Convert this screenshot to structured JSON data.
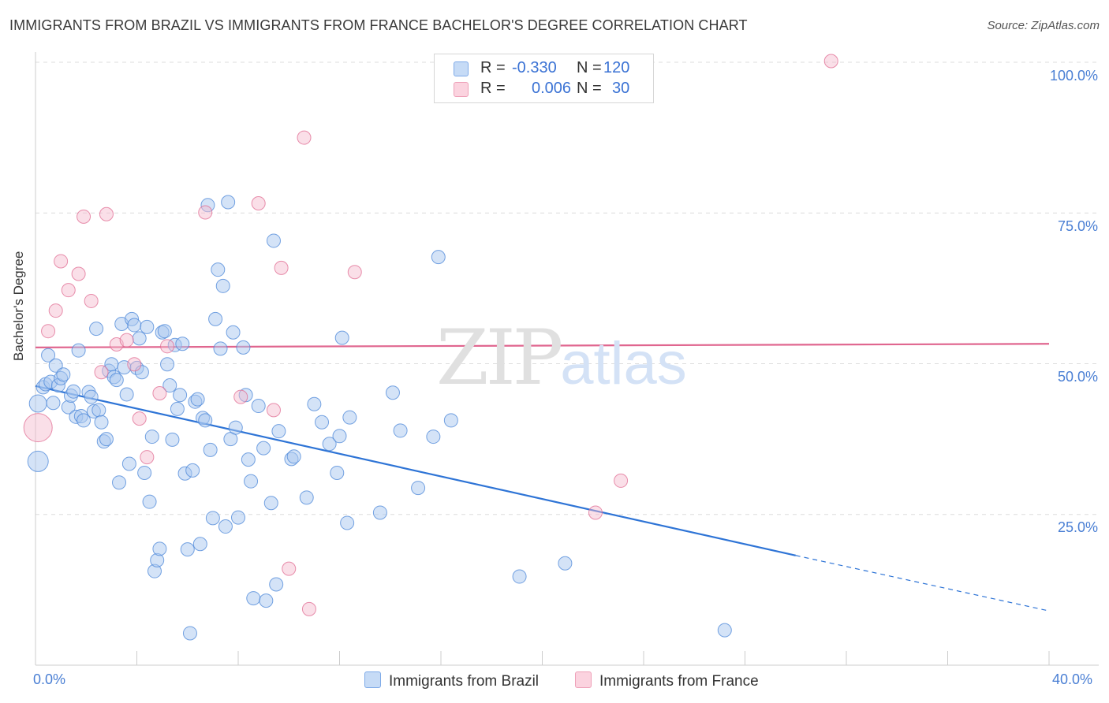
{
  "title": "IMMIGRANTS FROM BRAZIL VS IMMIGRANTS FROM FRANCE BACHELOR'S DEGREE CORRELATION CHART",
  "source": "Source: ZipAtlas.com",
  "watermark": {
    "part1": "ZIP",
    "part2": "atlas"
  },
  "legend": {
    "brazil": {
      "r_label": "R =",
      "r_value": "-0.330",
      "n_label": "N =",
      "n_value": "120",
      "color": "#a9c8f0"
    },
    "france": {
      "r_label": "R =",
      "r_value": "0.006",
      "n_label": "N =",
      "n_value": "30",
      "color": "#f5b8cb"
    }
  },
  "bottom_legend": {
    "brazil": "Immigrants from Brazil",
    "france": "Immigrants from France"
  },
  "axes": {
    "y_label": "Bachelor's Degree",
    "y_ticks": [
      "100.0%",
      "75.0%",
      "50.0%",
      "25.0%"
    ],
    "x_ticks": [
      "0.0%",
      "40.0%"
    ]
  },
  "chart_data": {
    "type": "scatter",
    "title": "IMMIGRANTS FROM BRAZIL VS IMMIGRANTS FROM FRANCE BACHELOR'S DEGREE CORRELATION CHART",
    "xlabel": "",
    "ylabel": "Bachelor's Degree",
    "xlim": [
      0,
      40
    ],
    "ylim": [
      0,
      100
    ],
    "grid": true,
    "legend_placement": "top-center",
    "series": [
      {
        "name": "Immigrants from Brazil",
        "color": "#4a86d8",
        "fill": "#a9c8f0",
        "points": [
          [
            0.1,
            33.8
          ],
          [
            0.1,
            43.4
          ],
          [
            0.3,
            46.1
          ],
          [
            0.4,
            46.6
          ],
          [
            0.5,
            51.4
          ],
          [
            0.6,
            47.0
          ],
          [
            0.7,
            43.5
          ],
          [
            0.8,
            49.7
          ],
          [
            0.9,
            46.4
          ],
          [
            1.0,
            47.6
          ],
          [
            1.1,
            48.2
          ],
          [
            1.3,
            42.8
          ],
          [
            1.4,
            44.7
          ],
          [
            1.5,
            45.4
          ],
          [
            1.6,
            41.2
          ],
          [
            1.7,
            52.2
          ],
          [
            1.8,
            41.3
          ],
          [
            1.9,
            40.6
          ],
          [
            2.1,
            45.3
          ],
          [
            2.2,
            44.5
          ],
          [
            2.3,
            42.1
          ],
          [
            2.4,
            55.8
          ],
          [
            2.5,
            42.3
          ],
          [
            2.6,
            40.3
          ],
          [
            2.7,
            37.1
          ],
          [
            2.8,
            37.5
          ],
          [
            2.9,
            48.8
          ],
          [
            3.0,
            49.9
          ],
          [
            3.1,
            47.8
          ],
          [
            3.2,
            47.3
          ],
          [
            3.3,
            30.3
          ],
          [
            3.4,
            56.6
          ],
          [
            3.5,
            49.4
          ],
          [
            3.6,
            44.9
          ],
          [
            3.7,
            33.4
          ],
          [
            3.8,
            57.4
          ],
          [
            3.9,
            56.4
          ],
          [
            4.0,
            49.3
          ],
          [
            4.1,
            54.2
          ],
          [
            4.2,
            48.6
          ],
          [
            4.3,
            31.9
          ],
          [
            4.4,
            56.1
          ],
          [
            4.5,
            27.1
          ],
          [
            4.6,
            37.9
          ],
          [
            4.7,
            15.6
          ],
          [
            4.8,
            17.4
          ],
          [
            4.9,
            19.3
          ],
          [
            5.0,
            55.2
          ],
          [
            5.1,
            55.4
          ],
          [
            5.2,
            49.9
          ],
          [
            5.3,
            46.4
          ],
          [
            5.4,
            37.4
          ],
          [
            5.5,
            53.1
          ],
          [
            5.6,
            42.5
          ],
          [
            5.7,
            44.8
          ],
          [
            5.8,
            53.3
          ],
          [
            5.9,
            31.8
          ],
          [
            6.0,
            19.2
          ],
          [
            6.1,
            5.3
          ],
          [
            6.2,
            32.3
          ],
          [
            6.3,
            43.7
          ],
          [
            6.4,
            44.1
          ],
          [
            6.5,
            20.1
          ],
          [
            6.6,
            41.0
          ],
          [
            6.7,
            40.6
          ],
          [
            6.8,
            76.3
          ],
          [
            6.9,
            35.7
          ],
          [
            7.0,
            24.4
          ],
          [
            7.1,
            57.4
          ],
          [
            7.2,
            65.6
          ],
          [
            7.3,
            52.5
          ],
          [
            7.4,
            62.9
          ],
          [
            7.5,
            23.0
          ],
          [
            7.6,
            76.8
          ],
          [
            7.7,
            37.5
          ],
          [
            7.8,
            55.2
          ],
          [
            7.9,
            39.4
          ],
          [
            8.0,
            24.5
          ],
          [
            8.2,
            52.7
          ],
          [
            8.3,
            44.8
          ],
          [
            8.4,
            34.1
          ],
          [
            8.5,
            30.5
          ],
          [
            8.6,
            11.1
          ],
          [
            8.8,
            43.0
          ],
          [
            9.0,
            36.0
          ],
          [
            9.1,
            10.7
          ],
          [
            9.3,
            26.9
          ],
          [
            9.4,
            70.4
          ],
          [
            9.5,
            13.4
          ],
          [
            9.6,
            38.8
          ],
          [
            10.1,
            34.2
          ],
          [
            10.2,
            34.6
          ],
          [
            10.7,
            27.8
          ],
          [
            11.0,
            43.3
          ],
          [
            11.3,
            40.3
          ],
          [
            11.6,
            36.7
          ],
          [
            11.9,
            31.9
          ],
          [
            12.0,
            38.0
          ],
          [
            12.1,
            54.3
          ],
          [
            12.3,
            23.6
          ],
          [
            12.4,
            41.1
          ],
          [
            13.6,
            25.3
          ],
          [
            14.1,
            45.2
          ],
          [
            14.4,
            38.9
          ],
          [
            15.1,
            29.4
          ],
          [
            15.7,
            37.9
          ],
          [
            15.9,
            67.7
          ],
          [
            16.4,
            40.6
          ],
          [
            19.1,
            14.7
          ],
          [
            20.9,
            16.9
          ],
          [
            27.2,
            5.8
          ]
        ]
      },
      {
        "name": "Immigrants from France",
        "color": "#e06b92",
        "fill": "#f5b8cb",
        "points": [
          [
            0.1,
            39.4
          ],
          [
            0.5,
            55.4
          ],
          [
            0.8,
            58.8
          ],
          [
            1.0,
            67.0
          ],
          [
            1.3,
            62.2
          ],
          [
            1.7,
            64.9
          ],
          [
            1.9,
            74.4
          ],
          [
            2.2,
            60.4
          ],
          [
            2.6,
            48.6
          ],
          [
            2.8,
            74.8
          ],
          [
            3.2,
            53.2
          ],
          [
            3.6,
            53.9
          ],
          [
            3.9,
            49.9
          ],
          [
            4.1,
            40.9
          ],
          [
            4.4,
            34.5
          ],
          [
            4.9,
            45.1
          ],
          [
            5.2,
            52.9
          ],
          [
            6.7,
            75.1
          ],
          [
            8.1,
            44.5
          ],
          [
            8.8,
            76.6
          ],
          [
            9.4,
            42.3
          ],
          [
            9.7,
            65.9
          ],
          [
            10.0,
            16.0
          ],
          [
            10.6,
            87.5
          ],
          [
            10.8,
            9.3
          ],
          [
            12.6,
            65.2
          ],
          [
            22.1,
            25.3
          ],
          [
            23.1,
            30.6
          ],
          [
            31.4,
            100.2
          ]
        ]
      }
    ],
    "trend_lines": [
      {
        "series": "Immigrants from Brazil",
        "x": [
          0.0,
          30.0
        ],
        "y": [
          46.3,
          18.2
        ],
        "dashed_extension_to": [
          40.0,
          9.0
        ]
      },
      {
        "series": "Immigrants from France",
        "x": [
          0.0,
          40.0
        ],
        "y": [
          52.7,
          53.3
        ]
      }
    ]
  }
}
